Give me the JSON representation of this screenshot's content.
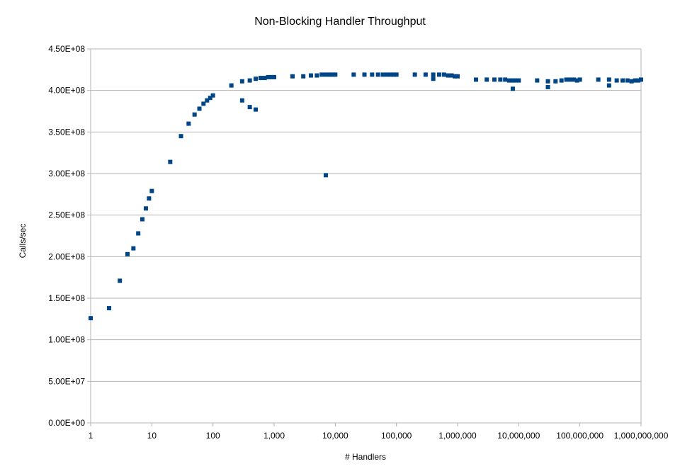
{
  "chart_data": {
    "type": "scatter",
    "title": "Non-Blocking Handler Throughput",
    "xlabel": "# Handlers",
    "ylabel": "Calls/sec",
    "x_scale": "log",
    "xlim": [
      1,
      1000000000
    ],
    "ylim": [
      0,
      450000000
    ],
    "grid": {
      "horizontal": true,
      "vertical": false
    },
    "legend": null,
    "marker_color": "#004586",
    "x_tick_labels": [
      "1",
      "10",
      "100",
      "1,000",
      "10,000",
      "100,000",
      "1,000,000",
      "10,000,000",
      "100,000,000",
      "1,000,000,000"
    ],
    "y_tick_labels": [
      "0.00E+00",
      "5.00E+07",
      "1.00E+08",
      "1.50E+08",
      "2.00E+08",
      "2.50E+08",
      "3.00E+08",
      "3.50E+08",
      "4.00E+08",
      "4.50E+08"
    ],
    "series": [
      {
        "name": "Calls/sec",
        "points": [
          [
            1,
            126000000
          ],
          [
            2,
            138000000
          ],
          [
            3,
            171000000
          ],
          [
            4,
            203000000
          ],
          [
            5,
            210000000
          ],
          [
            6,
            228000000
          ],
          [
            7,
            245000000
          ],
          [
            8,
            258000000
          ],
          [
            9,
            270000000
          ],
          [
            10,
            279000000
          ],
          [
            20,
            314000000
          ],
          [
            30,
            345000000
          ],
          [
            40,
            360000000
          ],
          [
            50,
            371000000
          ],
          [
            60,
            378000000
          ],
          [
            70,
            384000000
          ],
          [
            80,
            388000000
          ],
          [
            90,
            391000000
          ],
          [
            100,
            394000000
          ],
          [
            200,
            406000000
          ],
          [
            300,
            411000000
          ],
          [
            300,
            388000000
          ],
          [
            400,
            412000000
          ],
          [
            400,
            380000000
          ],
          [
            500,
            414000000
          ],
          [
            500,
            377000000
          ],
          [
            600,
            415000000
          ],
          [
            700,
            415000000
          ],
          [
            800,
            416000000
          ],
          [
            900,
            416000000
          ],
          [
            1000,
            416000000
          ],
          [
            2000,
            417000000
          ],
          [
            3000,
            417000000
          ],
          [
            4000,
            418000000
          ],
          [
            5000,
            418000000
          ],
          [
            6000,
            419000000
          ],
          [
            7000,
            419000000
          ],
          [
            7000,
            298000000
          ],
          [
            8000,
            419000000
          ],
          [
            9000,
            419000000
          ],
          [
            10000,
            419000000
          ],
          [
            20000,
            419000000
          ],
          [
            30000,
            419000000
          ],
          [
            40000,
            419000000
          ],
          [
            50000,
            419000000
          ],
          [
            60000,
            419000000
          ],
          [
            70000,
            419000000
          ],
          [
            80000,
            419000000
          ],
          [
            90000,
            419000000
          ],
          [
            100000,
            419000000
          ],
          [
            200000,
            419000000
          ],
          [
            300000,
            419000000
          ],
          [
            400000,
            419000000
          ],
          [
            400000,
            414000000
          ],
          [
            500000,
            419000000
          ],
          [
            600000,
            419000000
          ],
          [
            700000,
            418000000
          ],
          [
            800000,
            418000000
          ],
          [
            900000,
            417000000
          ],
          [
            1000000,
            417000000
          ],
          [
            2000000,
            413000000
          ],
          [
            3000000,
            413000000
          ],
          [
            4000000,
            413000000
          ],
          [
            5000000,
            413000000
          ],
          [
            6000000,
            413000000
          ],
          [
            7000000,
            412000000
          ],
          [
            8000000,
            412000000
          ],
          [
            8000000,
            402000000
          ],
          [
            9000000,
            412000000
          ],
          [
            10000000,
            412000000
          ],
          [
            20000000,
            412000000
          ],
          [
            30000000,
            411000000
          ],
          [
            30000000,
            404000000
          ],
          [
            40000000,
            411000000
          ],
          [
            50000000,
            412000000
          ],
          [
            60000000,
            413000000
          ],
          [
            70000000,
            413000000
          ],
          [
            80000000,
            413000000
          ],
          [
            90000000,
            412000000
          ],
          [
            100000000,
            413000000
          ],
          [
            200000000,
            413000000
          ],
          [
            300000000,
            413000000
          ],
          [
            300000000,
            406000000
          ],
          [
            400000000,
            412000000
          ],
          [
            500000000,
            412000000
          ],
          [
            600000000,
            412000000
          ],
          [
            700000000,
            411000000
          ],
          [
            800000000,
            412000000
          ],
          [
            900000000,
            412000000
          ],
          [
            1000000000,
            413000000
          ]
        ]
      }
    ]
  }
}
